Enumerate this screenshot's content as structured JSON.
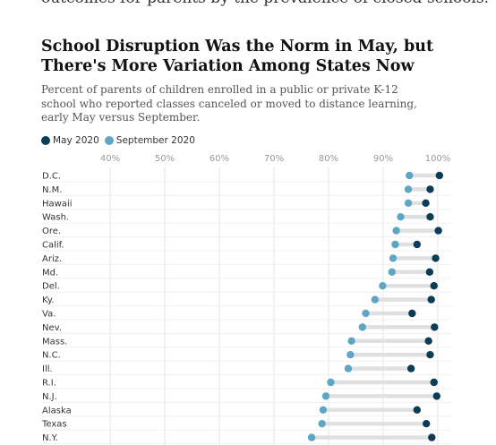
{
  "intro_text": "outcomes for parents by the prevalence of closed schools.",
  "header": {
    "title": "School Disruption Was the Norm in May, but There's More Variation Among States Now",
    "subtitle": "Percent of parents of children enrolled in a public or private K-12 school who reported classes canceled or moved to distance learning, early May versus September."
  },
  "legend": {
    "may_label": "May 2020",
    "sep_label": "September 2020"
  },
  "colors": {
    "may": "#0d3d56",
    "september": "#5ea6c4",
    "connector": "#e0e0e0",
    "gridline": "#e6e6e6"
  },
  "chart_data": {
    "type": "dot-plot",
    "title": "School Disruption Was the Norm in May, but There's More Variation Among States Now",
    "xlabel": "",
    "ylabel": "",
    "xlim": [
      33,
      101
    ],
    "ticks": [
      40,
      50,
      60,
      70,
      80,
      90,
      100
    ],
    "tick_labels": [
      "40%",
      "50%",
      "60%",
      "70%",
      "80%",
      "90%",
      "100%"
    ],
    "grid": true,
    "legend_position": "top-left",
    "categories": [
      "D.C.",
      "N.M.",
      "Hawaii",
      "Wash.",
      "Ore.",
      "Calif.",
      "Ariz.",
      "Md.",
      "Del.",
      "Ky.",
      "Va.",
      "Nev.",
      "Mass.",
      "N.C.",
      "Ill.",
      "R.I.",
      "N.J.",
      "Alaska",
      "Texas",
      "N.Y."
    ],
    "series": [
      {
        "name": "May 2020",
        "values": [
          100.3,
          98.6,
          97.8,
          98.6,
          100.1,
          96.2,
          99.6,
          98.5,
          99.3,
          98.8,
          95.3,
          99.4,
          98.3,
          98.6,
          95.1,
          99.3,
          99.8,
          96.2,
          97.9,
          98.9
        ]
      },
      {
        "name": "September 2020",
        "values": [
          94.8,
          94.6,
          94.6,
          93.2,
          92.4,
          92.2,
          91.8,
          91.6,
          89.9,
          88.5,
          86.8,
          86.2,
          84.2,
          84.0,
          83.6,
          80.4,
          79.5,
          79.0,
          78.8,
          76.9
        ]
      }
    ]
  }
}
